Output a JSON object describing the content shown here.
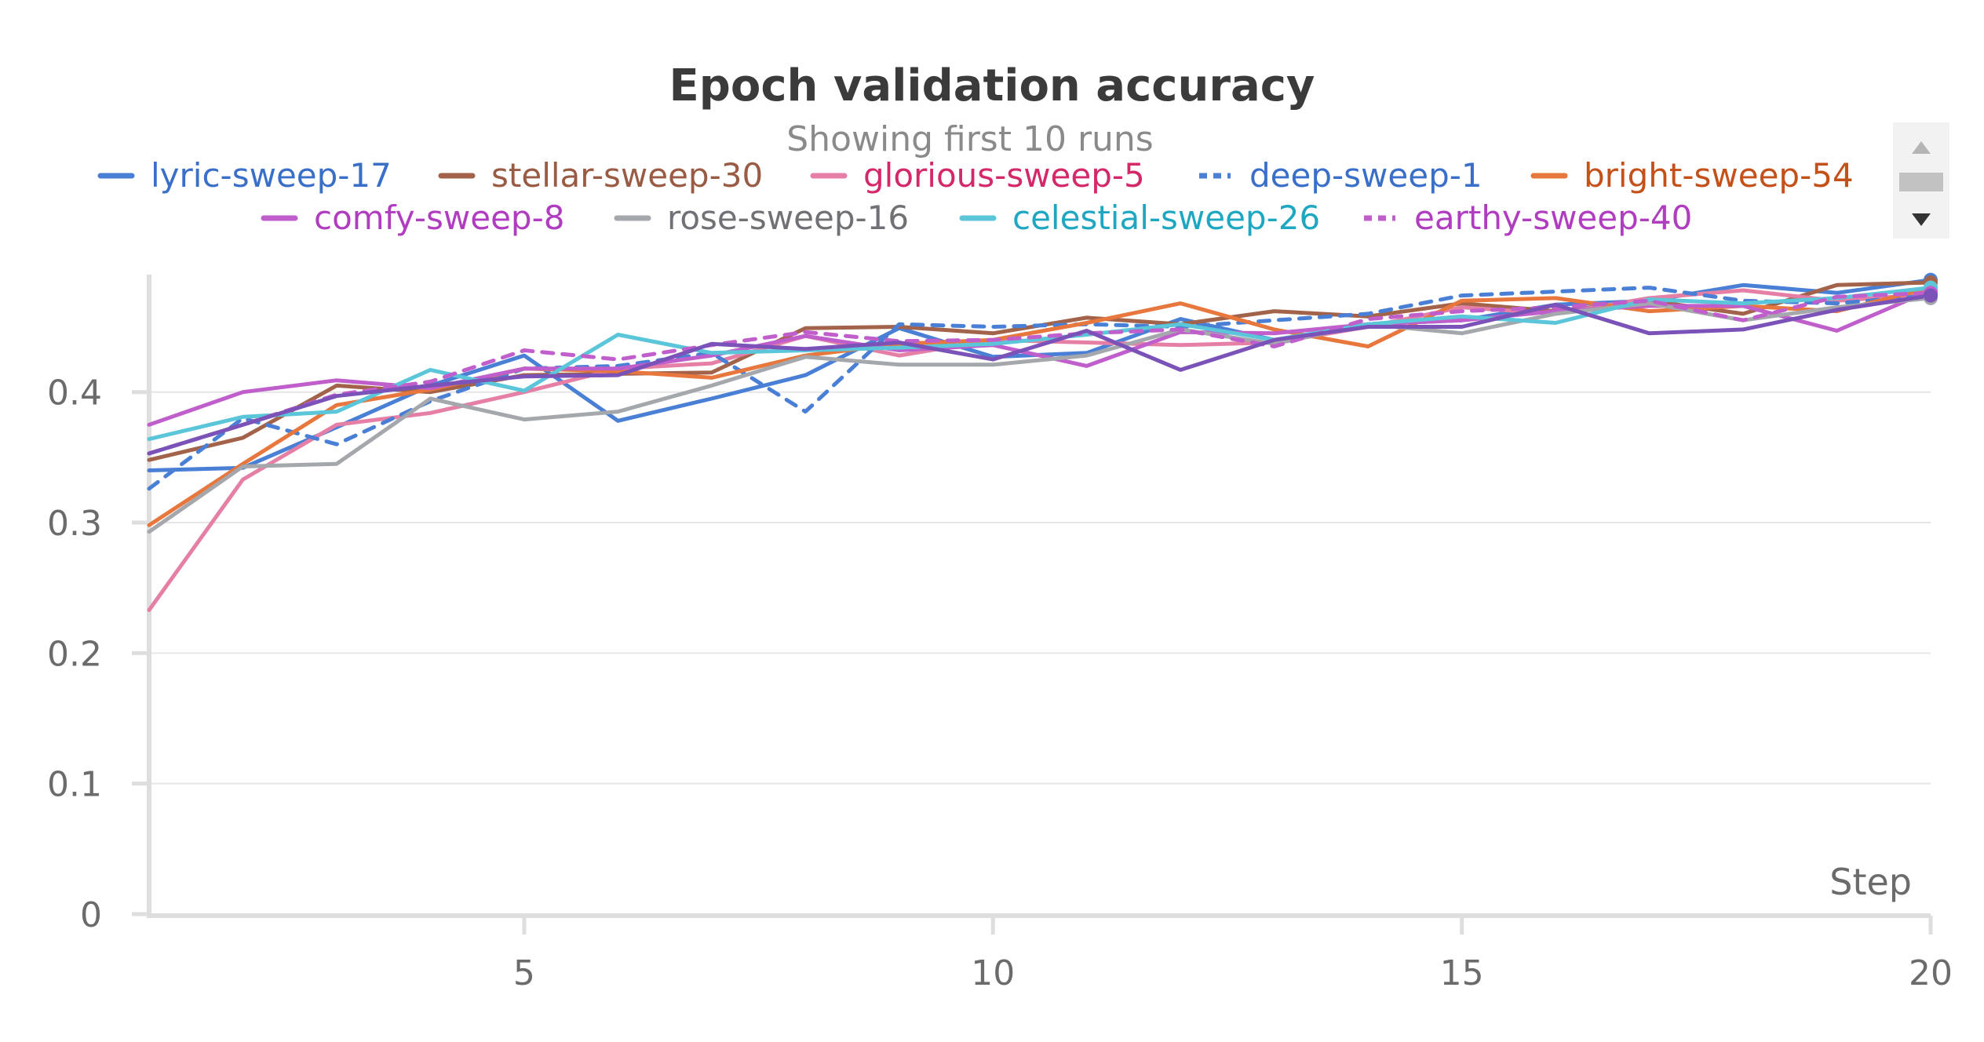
{
  "chart_data": {
    "type": "line",
    "title": "Epoch validation accuracy",
    "subtitle": "Showing first 10 runs",
    "xlabel": "Step",
    "ylabel": "",
    "xlim": [
      1,
      20
    ],
    "ylim": [
      0,
      0.49
    ],
    "xticks": [
      5,
      10,
      15,
      20
    ],
    "yticks": [
      0,
      0.1,
      0.2,
      0.3,
      0.4
    ],
    "ytick_labels": [
      "0",
      "0.1",
      "0.2",
      "0.3",
      "0.4"
    ],
    "grid": true,
    "legend_position": "top",
    "x": [
      1,
      2,
      3,
      4,
      5,
      6,
      7,
      8,
      9,
      10,
      11,
      12,
      13,
      14,
      15,
      16,
      17,
      18,
      19,
      20
    ],
    "series": [
      {
        "name": "lyric-sweep-17",
        "color": "#4a7fd6",
        "label_color": "#3a6fc9",
        "dashed": false,
        "values": [
          0.34,
          0.342,
          0.373,
          0.405,
          0.428,
          0.378,
          0.395,
          0.413,
          0.449,
          0.427,
          0.43,
          0.456,
          0.44,
          0.452,
          0.455,
          0.467,
          0.47,
          0.482,
          0.476,
          0.486
        ]
      },
      {
        "name": "stellar-sweep-30",
        "color": "#a3634a",
        "label_color": "#9a5b45",
        "dashed": false,
        "values": [
          0.348,
          0.365,
          0.405,
          0.4,
          0.413,
          0.414,
          0.415,
          0.449,
          0.45,
          0.445,
          0.457,
          0.452,
          0.462,
          0.458,
          0.468,
          0.462,
          0.47,
          0.46,
          0.482,
          0.484
        ]
      },
      {
        "name": "glorious-sweep-5",
        "color": "#e67fa6",
        "label_color": "#d4286a",
        "dashed": false,
        "values": [
          0.233,
          0.333,
          0.375,
          0.384,
          0.4,
          0.418,
          0.422,
          0.443,
          0.428,
          0.44,
          0.438,
          0.436,
          0.438,
          0.45,
          0.465,
          0.46,
          0.472,
          0.478,
          0.47,
          0.475
        ]
      },
      {
        "name": "deep-sweep-1",
        "color": "#4a7fd6",
        "label_color": "#3a6fc9",
        "dashed": true,
        "values": [
          0.326,
          0.38,
          0.36,
          0.393,
          0.418,
          0.42,
          0.43,
          0.385,
          0.452,
          0.45,
          0.452,
          0.45,
          0.455,
          0.46,
          0.474,
          0.477,
          0.48,
          0.47,
          0.468,
          0.474
        ]
      },
      {
        "name": "bright-sweep-54",
        "color": "#e8773e",
        "label_color": "#c4501a",
        "dashed": false,
        "values": [
          0.298,
          0.345,
          0.39,
          0.402,
          0.418,
          0.416,
          0.411,
          0.428,
          0.437,
          0.44,
          0.453,
          0.468,
          0.448,
          0.435,
          0.47,
          0.472,
          0.462,
          0.466,
          0.462,
          0.48
        ]
      },
      {
        "name": "comfy-sweep-8",
        "color": "#c05ecc",
        "label_color": "#b03cc0",
        "dashed": false,
        "values": [
          0.375,
          0.4,
          0.409,
          0.403,
          0.418,
          0.418,
          0.428,
          0.443,
          0.432,
          0.436,
          0.42,
          0.446,
          0.445,
          0.452,
          0.455,
          0.462,
          0.466,
          0.466,
          0.447,
          0.478
        ]
      },
      {
        "name": "rose-sweep-16",
        "color": "#a4a7ab",
        "label_color": "#6f7175",
        "dashed": false,
        "values": [
          0.293,
          0.343,
          0.345,
          0.395,
          0.379,
          0.385,
          0.405,
          0.427,
          0.421,
          0.421,
          0.428,
          0.448,
          0.437,
          0.452,
          0.445,
          0.46,
          0.468,
          0.455,
          0.465,
          0.472
        ]
      },
      {
        "name": "celestial-sweep-26",
        "color": "#5bc6d9",
        "label_color": "#1fa7c2",
        "dashed": false,
        "values": [
          0.364,
          0.381,
          0.385,
          0.417,
          0.401,
          0.444,
          0.43,
          0.432,
          0.434,
          0.437,
          0.444,
          0.452,
          0.44,
          0.452,
          0.458,
          0.453,
          0.471,
          0.468,
          0.472,
          0.48
        ]
      },
      {
        "name": "earthy-sweep-40",
        "color": "#c05ecc",
        "label_color": "#b03cc0",
        "dashed": true,
        "values": [
          0.353,
          0.375,
          0.398,
          0.408,
          0.432,
          0.425,
          0.436,
          0.446,
          0.439,
          0.44,
          0.445,
          0.448,
          0.435,
          0.456,
          0.462,
          0.465,
          0.47,
          0.455,
          0.473,
          0.476
        ]
      },
      {
        "name": "",
        "color": "#7a52b8",
        "label_color": "#7a52b8",
        "dashed": false,
        "values": [
          0.353,
          0.375,
          0.397,
          0.405,
          0.412,
          0.413,
          0.437,
          0.433,
          0.438,
          0.425,
          0.447,
          0.417,
          0.44,
          0.45,
          0.45,
          0.467,
          0.445,
          0.448,
          0.463,
          0.474
        ]
      }
    ]
  },
  "scrollbar": {
    "up_icon": "triangle-up-icon",
    "down_icon": "triangle-down-icon"
  }
}
